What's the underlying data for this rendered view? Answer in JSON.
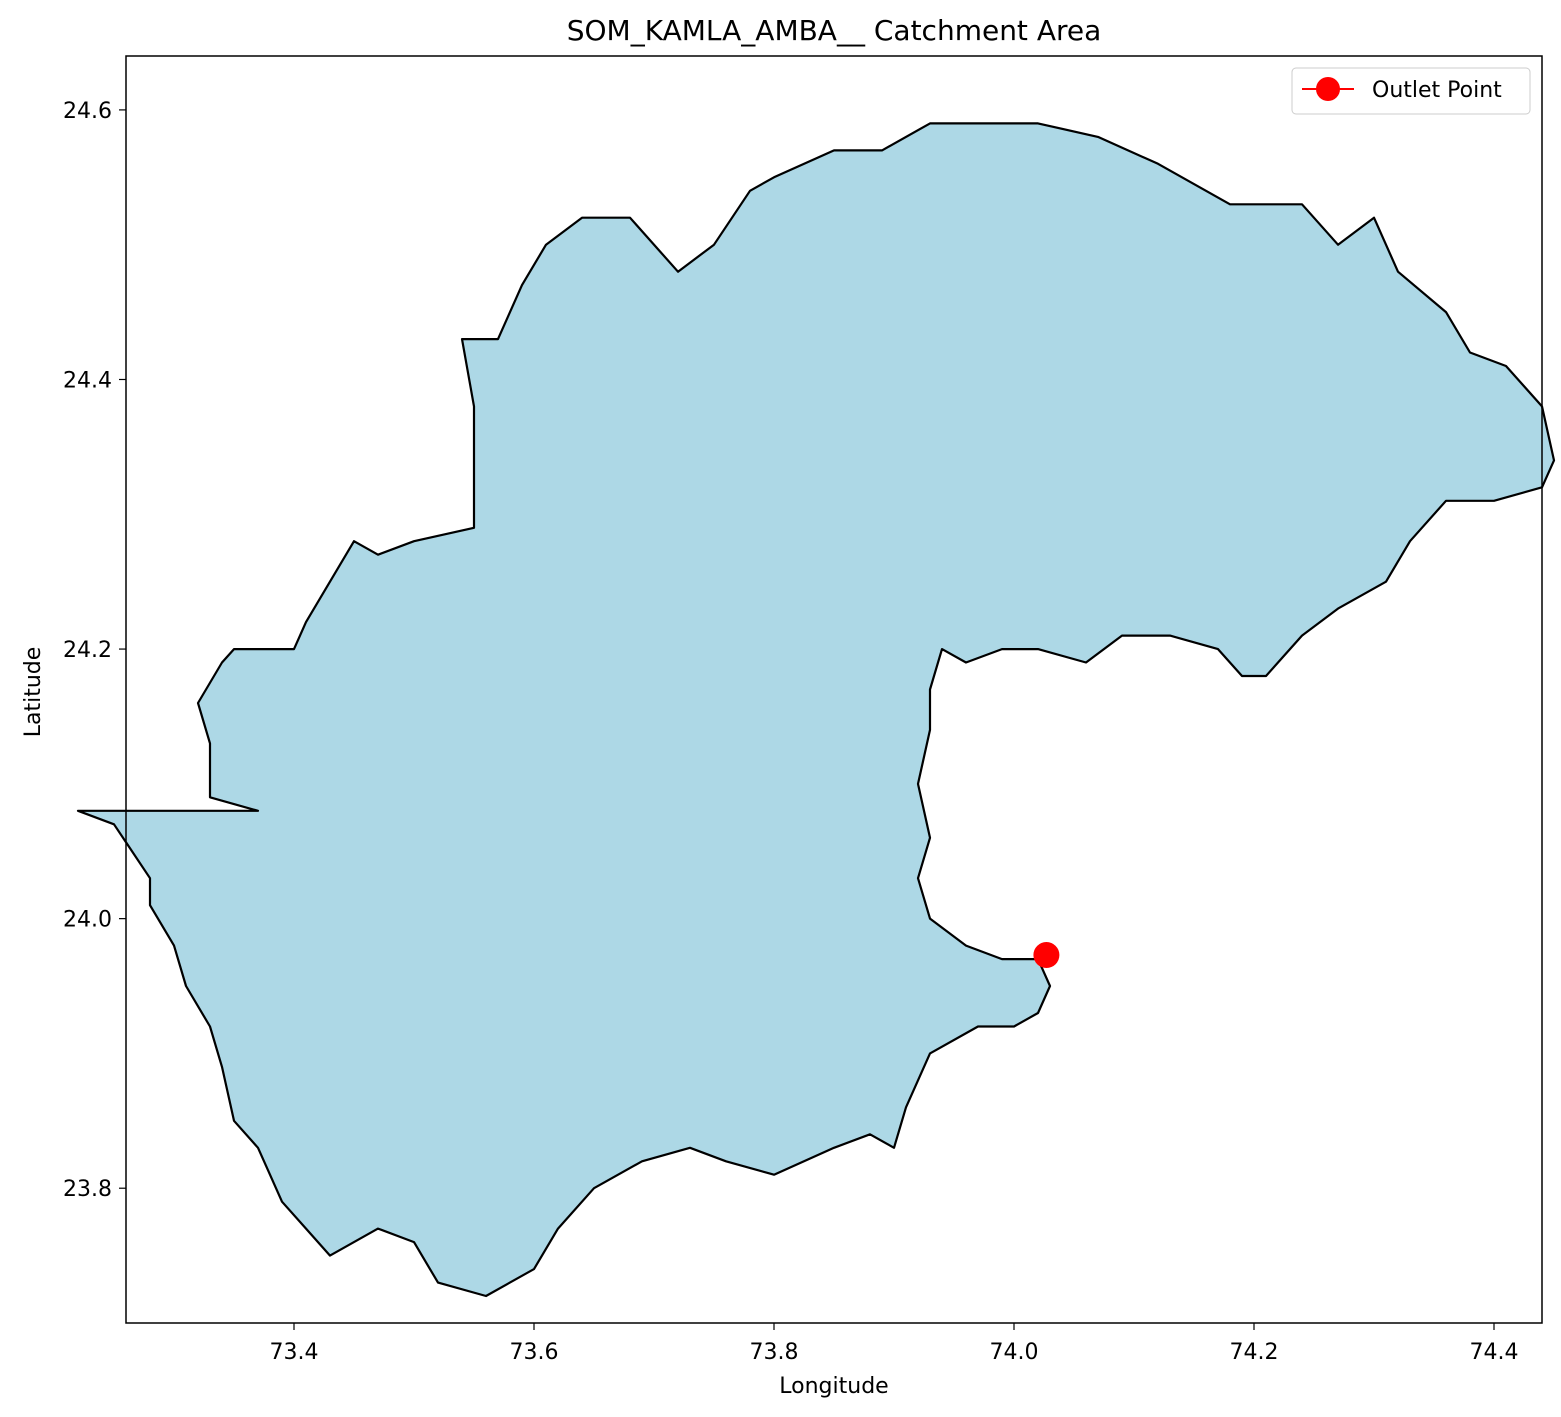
{
  "title": "SOM_KAMLA_AMBA__ Catchment Area",
  "xlabel": "Longitude",
  "ylabel": "Latitude",
  "chart_data": {
    "type": "map",
    "xlim": [
      73.26,
      74.44
    ],
    "ylim": [
      23.7,
      24.64
    ],
    "xticks": [
      73.4,
      73.6,
      73.8,
      74.0,
      74.2,
      74.4
    ],
    "xtick_labels": [
      "73.4",
      "73.6",
      "73.8",
      "74.0",
      "74.2",
      "74.4"
    ],
    "yticks": [
      23.8,
      24.0,
      24.2,
      24.4,
      24.6
    ],
    "ytick_labels": [
      "23.8",
      "24.0",
      "24.2",
      "24.4",
      "24.6"
    ],
    "catchment": {
      "fill": "#add8e6",
      "stroke": "#000000",
      "boundary": [
        [
          73.37,
          24.08
        ],
        [
          73.33,
          24.09
        ],
        [
          73.33,
          24.13
        ],
        [
          73.32,
          24.16
        ],
        [
          73.34,
          24.19
        ],
        [
          73.35,
          24.2
        ],
        [
          73.38,
          24.2
        ],
        [
          73.4,
          24.2
        ],
        [
          73.41,
          24.22
        ],
        [
          73.45,
          24.28
        ],
        [
          73.47,
          24.27
        ],
        [
          73.5,
          24.28
        ],
        [
          73.55,
          24.29
        ],
        [
          73.55,
          24.32
        ],
        [
          73.55,
          24.38
        ],
        [
          73.54,
          24.43
        ],
        [
          73.57,
          24.43
        ],
        [
          73.59,
          24.47
        ],
        [
          73.61,
          24.5
        ],
        [
          73.64,
          24.52
        ],
        [
          73.68,
          24.52
        ],
        [
          73.72,
          24.48
        ],
        [
          73.75,
          24.5
        ],
        [
          73.78,
          24.54
        ],
        [
          73.8,
          24.55
        ],
        [
          73.85,
          24.57
        ],
        [
          73.89,
          24.57
        ],
        [
          73.93,
          24.59
        ],
        [
          73.97,
          24.59
        ],
        [
          74.02,
          24.59
        ],
        [
          74.07,
          24.58
        ],
        [
          74.12,
          24.56
        ],
        [
          74.18,
          24.53
        ],
        [
          74.24,
          24.53
        ],
        [
          74.27,
          24.5
        ],
        [
          74.3,
          24.52
        ],
        [
          74.32,
          24.48
        ],
        [
          74.36,
          24.45
        ],
        [
          74.38,
          24.42
        ],
        [
          74.41,
          24.41
        ],
        [
          74.44,
          24.38
        ],
        [
          74.45,
          24.34
        ],
        [
          74.44,
          24.32
        ],
        [
          74.4,
          24.31
        ],
        [
          74.36,
          24.31
        ],
        [
          74.33,
          24.28
        ],
        [
          74.31,
          24.25
        ],
        [
          74.27,
          24.23
        ],
        [
          74.24,
          24.21
        ],
        [
          74.22,
          24.19
        ],
        [
          74.21,
          24.18
        ],
        [
          74.19,
          24.18
        ],
        [
          74.17,
          24.2
        ],
        [
          74.13,
          24.21
        ],
        [
          74.09,
          24.21
        ],
        [
          74.06,
          24.19
        ],
        [
          74.02,
          24.2
        ],
        [
          73.99,
          24.2
        ],
        [
          73.96,
          24.19
        ],
        [
          73.94,
          24.2
        ],
        [
          73.93,
          24.17
        ],
        [
          73.93,
          24.14
        ],
        [
          73.92,
          24.1
        ],
        [
          73.93,
          24.06
        ],
        [
          73.92,
          24.03
        ],
        [
          73.93,
          24.0
        ],
        [
          73.96,
          23.98
        ],
        [
          73.99,
          23.97
        ],
        [
          74.02,
          23.97
        ],
        [
          74.03,
          23.95
        ],
        [
          74.02,
          23.93
        ],
        [
          74.0,
          23.92
        ],
        [
          73.97,
          23.92
        ],
        [
          73.93,
          23.9
        ],
        [
          73.91,
          23.86
        ],
        [
          73.9,
          23.83
        ],
        [
          73.88,
          23.84
        ],
        [
          73.85,
          23.83
        ],
        [
          73.8,
          23.81
        ],
        [
          73.76,
          23.82
        ],
        [
          73.73,
          23.83
        ],
        [
          73.69,
          23.82
        ],
        [
          73.65,
          23.8
        ],
        [
          73.62,
          23.77
        ],
        [
          73.6,
          23.74
        ],
        [
          73.56,
          23.72
        ],
        [
          73.52,
          23.73
        ],
        [
          73.5,
          23.76
        ],
        [
          73.47,
          23.77
        ],
        [
          73.43,
          23.75
        ],
        [
          73.41,
          23.77
        ],
        [
          73.39,
          23.79
        ],
        [
          73.38,
          23.81
        ],
        [
          73.37,
          23.83
        ],
        [
          73.35,
          23.85
        ],
        [
          73.34,
          23.89
        ],
        [
          73.33,
          23.92
        ],
        [
          73.31,
          23.95
        ],
        [
          73.3,
          23.98
        ],
        [
          73.28,
          24.01
        ],
        [
          73.28,
          24.03
        ],
        [
          73.25,
          24.07
        ],
        [
          73.22,
          24.08
        ]
      ]
    },
    "series": [
      {
        "name": "Outlet Point",
        "type": "point",
        "color": "#ff0000",
        "x": 74.027,
        "y": 23.973
      }
    ],
    "legend": {
      "position": "top-right",
      "labels": [
        "Outlet Point"
      ]
    },
    "grid": false
  },
  "legend_label": "Outlet Point"
}
